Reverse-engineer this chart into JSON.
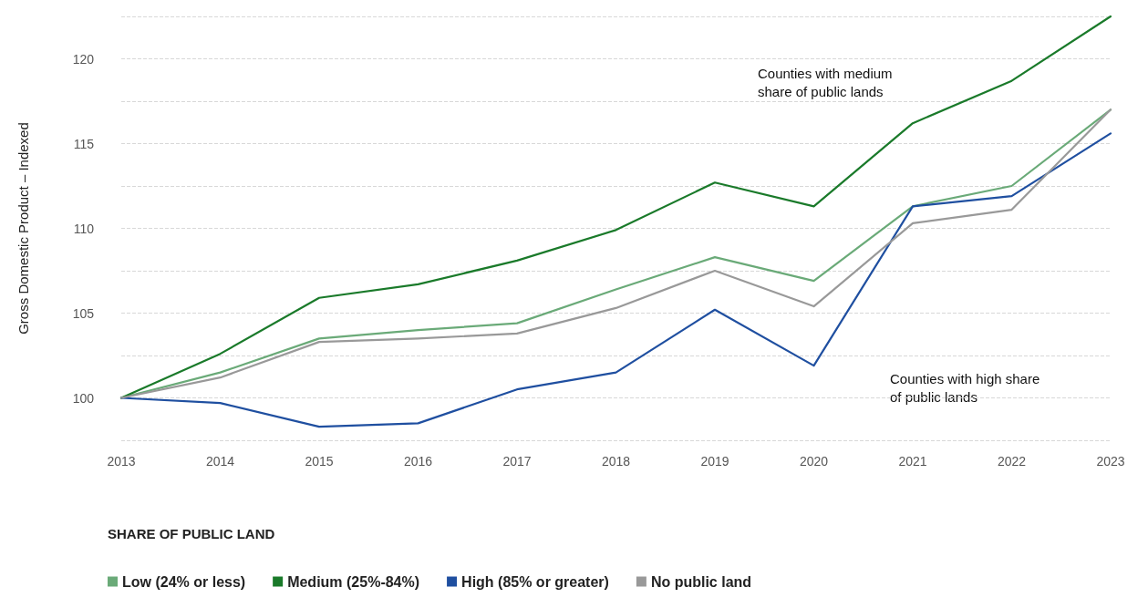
{
  "chart_data": {
    "type": "line",
    "ylabel": "Gross Domestic Product – Indexed",
    "legend_title": "SHARE OF PUBLIC LAND",
    "legend": "bottom left",
    "grid": "y",
    "marker": "none",
    "line_style": "solid",
    "x": [
      2013,
      2014,
      2015,
      2016,
      2017,
      2018,
      2019,
      2020,
      2021,
      2022,
      2023
    ],
    "xlim": [
      2013,
      2023
    ],
    "xticks": [
      2013,
      2014,
      2015,
      2016,
      2017,
      2018,
      2019,
      2020,
      2021,
      2022,
      2023
    ],
    "ylim": [
      97.5,
      122.5
    ],
    "yticks": [
      {
        "value": 97.5,
        "label": null
      },
      100,
      {
        "value": 102.5,
        "label": null
      },
      105,
      {
        "value": 107.5,
        "label": null
      },
      110,
      {
        "value": 112.5,
        "label": null
      },
      115,
      {
        "value": 117.5,
        "label": null
      },
      120,
      {
        "value": 122.5,
        "label": null
      }
    ],
    "series": [
      {
        "name": "Low (24% or less)",
        "color": "#6aaa78",
        "values": [
          100,
          101.5,
          103.5,
          104.0,
          104.4,
          106.4,
          108.3,
          106.9,
          111.3,
          112.5,
          117.0
        ]
      },
      {
        "name": "Medium (25%-84%)",
        "color": "#1a7a2a",
        "values": [
          100,
          102.6,
          105.9,
          106.7,
          108.1,
          109.9,
          112.7,
          111.3,
          116.2,
          118.7,
          122.5
        ]
      },
      {
        "name": "High (85% or greater)",
        "color": "#1f4fa0",
        "values": [
          100,
          99.7,
          98.3,
          98.5,
          100.5,
          101.5,
          105.2,
          101.9,
          111.3,
          111.9,
          115.6
        ]
      },
      {
        "name": "No public land",
        "color": "#999999",
        "values": [
          100,
          101.2,
          103.3,
          103.5,
          103.8,
          105.3,
          107.5,
          105.4,
          110.3,
          111.1,
          117.0
        ]
      }
    ],
    "annotations": [
      "Counties with medium\nshare of public lands",
      "Counties with high share\nof public lands"
    ]
  }
}
